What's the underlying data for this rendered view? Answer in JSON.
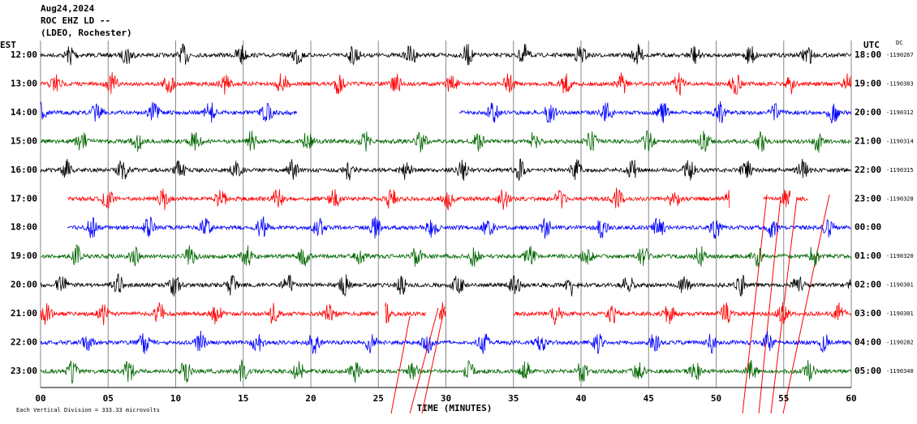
{
  "header": {
    "date": "Aug24,2024",
    "station": "ROC EHZ LD --",
    "location": "(LDEO, Rochester)"
  },
  "left_zone": "EST",
  "right_zone": "UTC",
  "dc_header": "DC",
  "rows": [
    {
      "local": "12:00",
      "utc": "18:00",
      "dc": "-1190267",
      "color": "#000000",
      "spans": [
        [
          0,
          60
        ]
      ]
    },
    {
      "local": "13:00",
      "utc": "19:00",
      "dc": "-1190303",
      "color": "#ff0000",
      "spans": [
        [
          0,
          60
        ]
      ]
    },
    {
      "local": "14:00",
      "utc": "20:00",
      "dc": "-1190312",
      "color": "#0000ff",
      "spans": [
        [
          0,
          19
        ],
        [
          31,
          60
        ]
      ]
    },
    {
      "local": "15:00",
      "utc": "21:00",
      "dc": "-1190314",
      "color": "#006600",
      "spans": [
        [
          0,
          60
        ]
      ]
    },
    {
      "local": "16:00",
      "utc": "22:00",
      "dc": "-1190315",
      "color": "#000000",
      "spans": [
        [
          0,
          60
        ]
      ]
    },
    {
      "local": "17:00",
      "utc": "23:00",
      "dc": "-1190328",
      "color": "#ff0000",
      "spans": [
        [
          2,
          51
        ],
        [
          53.5,
          55.5
        ],
        [
          56,
          56.8
        ]
      ]
    },
    {
      "local": "18:00",
      "utc": "00:00",
      "color": "#0000ff",
      "spans": [
        [
          2,
          60
        ]
      ]
    },
    {
      "local": "19:00",
      "utc": "01:00",
      "dc": "-1190320",
      "color": "#006600",
      "spans": [
        [
          0,
          60
        ]
      ]
    },
    {
      "local": "20:00",
      "utc": "02:00",
      "dc": "-1190301",
      "color": "#000000",
      "spans": [
        [
          0,
          60
        ]
      ]
    },
    {
      "local": "21:00",
      "utc": "03:00",
      "dc": "-1190301",
      "color": "#ff0000",
      "spans": [
        [
          0,
          25
        ],
        [
          25.5,
          28.5
        ],
        [
          29.5,
          30
        ],
        [
          35,
          60
        ]
      ]
    },
    {
      "local": "22:00",
      "utc": "04:00",
      "dc": "-1190282",
      "color": "#0000ff",
      "spans": [
        [
          0,
          60
        ]
      ]
    },
    {
      "local": "23:00",
      "utc": "05:00",
      "dc": "-1190340",
      "color": "#006600",
      "spans": [
        [
          0,
          60
        ]
      ]
    }
  ],
  "xlim": [
    0,
    60
  ],
  "xticks": [
    {
      "value": 0,
      "label": "00"
    },
    {
      "value": 5,
      "label": "05"
    },
    {
      "value": 10,
      "label": "10"
    },
    {
      "value": 15,
      "label": "15"
    },
    {
      "value": 20,
      "label": "20"
    },
    {
      "value": 25,
      "label": "25"
    },
    {
      "value": 30,
      "label": "30"
    },
    {
      "value": 35,
      "label": "35"
    },
    {
      "value": 40,
      "label": "40"
    },
    {
      "value": 45,
      "label": "45"
    },
    {
      "value": 50,
      "label": "50"
    },
    {
      "value": 55,
      "label": "55"
    },
    {
      "value": 60,
      "label": "60"
    }
  ],
  "x_label": "TIME (MINUTES)",
  "scale_note": "Each Vertical Division =  333.33 microvolts"
}
